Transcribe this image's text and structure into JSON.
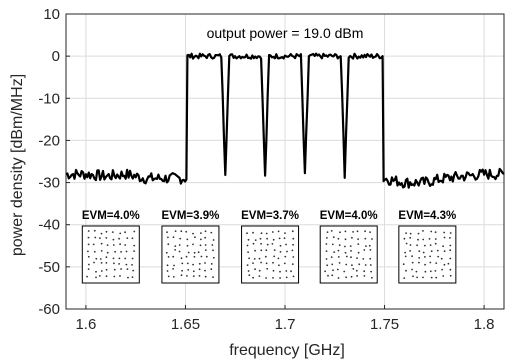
{
  "chart_data": {
    "type": "line",
    "title": "",
    "xlabel": "frequency [GHz]",
    "ylabel": "power density [dBm/MHz]",
    "xlim": [
      1.59,
      1.81
    ],
    "ylim": [
      -60,
      10
    ],
    "grid": true,
    "x_ticks": [
      1.6,
      1.65,
      1.7,
      1.75,
      1.8
    ],
    "x_tick_labels": [
      "1.6",
      "1.65",
      "1.7",
      "1.75",
      "1.8"
    ],
    "y_ticks": [
      10,
      0,
      -10,
      -20,
      -30,
      -40,
      -50,
      -60
    ],
    "y_tick_labels": [
      "10",
      "0",
      "-10",
      "-20",
      "-30",
      "-40",
      "-50",
      "-60"
    ],
    "annotation": "output power = 19.0 dBm",
    "series": [
      {
        "x": [
          1.59,
          1.6,
          1.61,
          1.62,
          1.63,
          1.64,
          1.6505,
          1.651,
          1.66,
          1.668,
          1.67,
          1.672,
          1.68,
          1.688,
          1.69,
          1.692,
          1.7,
          1.708,
          1.71,
          1.712,
          1.72,
          1.728,
          1.73,
          1.732,
          1.74,
          1.749,
          1.7495,
          1.76,
          1.77,
          1.78,
          1.79,
          1.8,
          1.81
        ],
        "y": [
          -28,
          -28,
          -28.5,
          -28,
          -29,
          -29,
          -29,
          0,
          0,
          0,
          -27,
          0,
          0,
          0,
          -29,
          0,
          0,
          0,
          -29,
          0,
          0,
          0,
          -28,
          0,
          0,
          0,
          -29,
          -30,
          -30,
          -29,
          -28.5,
          -28,
          -28
        ]
      }
    ],
    "evm_panels": [
      {
        "label": "EVM=4.0%",
        "center": 1.6125
      },
      {
        "label": "EVM=3.9%",
        "center": 1.6525
      },
      {
        "label": "EVM=3.7%",
        "center": 1.6925
      },
      {
        "label": "EVM=4.0%",
        "center": 1.732
      },
      {
        "label": "EVM=4.3%",
        "center": 1.7715
      }
    ]
  },
  "colors": {
    "line": "#000000",
    "grid": "#dcdcdc",
    "axis": "#262626",
    "constellation": "#333333"
  }
}
